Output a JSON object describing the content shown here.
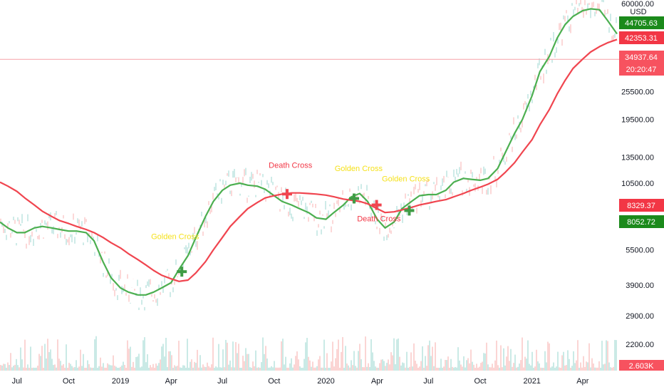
{
  "chart_data": {
    "type": "line",
    "yscale": "log",
    "ylim": [
      1900,
      62000
    ],
    "currency_label": "USD",
    "y_ticks": [
      "60000.00",
      "25500.00",
      "19500.00",
      "13500.00",
      "10500.00",
      "5500.00",
      "3900.00",
      "2900.00",
      "2200.00"
    ],
    "x_ticks": [
      "Jul",
      "Oct",
      "2019",
      "Apr",
      "Jul",
      "Oct",
      "2020",
      "Apr",
      "Jul",
      "Oct",
      "2021",
      "Apr"
    ],
    "price_badges": [
      {
        "value": "44705.63",
        "color": "#1b8a1b",
        "row": 0
      },
      {
        "value": "42353.31",
        "color": "#f23645",
        "row": 1
      },
      {
        "value": "34937.64",
        "color": "#f7525f",
        "row": 2
      },
      {
        "value": "20:20:47",
        "color": "#f7525f",
        "row": 3
      },
      {
        "value": "8329.37",
        "color": "#f23645",
        "row": 4
      },
      {
        "value": "8052.72",
        "color": "#1b8a1b",
        "row": 5
      }
    ],
    "volume_label": "2.603K",
    "current_price": 34937.64,
    "series": [
      {
        "color": "#4caf50",
        "points": [
          [
            "2018-06-01",
            7200
          ],
          [
            "2018-06-15",
            6800
          ],
          [
            "2018-07-01",
            6500
          ],
          [
            "2018-07-15",
            6500
          ],
          [
            "2018-08-01",
            6800
          ],
          [
            "2018-08-15",
            6900
          ],
          [
            "2018-09-01",
            6800
          ],
          [
            "2018-09-15",
            6700
          ],
          [
            "2018-10-01",
            6600
          ],
          [
            "2018-10-15",
            6600
          ],
          [
            "2018-11-01",
            6500
          ],
          [
            "2018-11-15",
            6000
          ],
          [
            "2018-12-01",
            4900
          ],
          [
            "2018-12-15",
            4200
          ],
          [
            "2019-01-01",
            3800
          ],
          [
            "2019-01-15",
            3650
          ],
          [
            "2019-02-01",
            3550
          ],
          [
            "2019-02-15",
            3550
          ],
          [
            "2019-03-01",
            3650
          ],
          [
            "2019-03-15",
            3800
          ],
          [
            "2019-04-01",
            4000
          ],
          [
            "2019-04-15",
            4550
          ],
          [
            "2019-05-01",
            5200
          ],
          [
            "2019-05-15",
            6200
          ],
          [
            "2019-06-01",
            7600
          ],
          [
            "2019-06-15",
            8800
          ],
          [
            "2019-07-01",
            9800
          ],
          [
            "2019-07-15",
            10300
          ],
          [
            "2019-08-01",
            10500
          ],
          [
            "2019-08-15",
            10300
          ],
          [
            "2019-09-01",
            10200
          ],
          [
            "2019-09-15",
            9900
          ],
          [
            "2019-10-01",
            9300
          ],
          [
            "2019-10-15",
            8800
          ],
          [
            "2019-11-01",
            8500
          ],
          [
            "2019-11-15",
            8200
          ],
          [
            "2019-12-01",
            7900
          ],
          [
            "2019-12-15",
            7500
          ],
          [
            "2020-01-01",
            7400
          ],
          [
            "2020-01-15",
            7900
          ],
          [
            "2020-02-01",
            8500
          ],
          [
            "2020-02-15",
            9200
          ],
          [
            "2020-03-01",
            9500
          ],
          [
            "2020-03-15",
            8800
          ],
          [
            "2020-04-01",
            7400
          ],
          [
            "2020-04-15",
            6800
          ],
          [
            "2020-05-01",
            7200
          ],
          [
            "2020-05-15",
            8200
          ],
          [
            "2020-06-01",
            8800
          ],
          [
            "2020-06-15",
            9300
          ],
          [
            "2020-07-01",
            9400
          ],
          [
            "2020-07-15",
            9400
          ],
          [
            "2020-08-01",
            9800
          ],
          [
            "2020-08-15",
            10600
          ],
          [
            "2020-09-01",
            11000
          ],
          [
            "2020-09-15",
            10900
          ],
          [
            "2020-10-01",
            10800
          ],
          [
            "2020-10-15",
            11000
          ],
          [
            "2020-11-01",
            12100
          ],
          [
            "2020-11-15",
            14200
          ],
          [
            "2020-12-01",
            17000
          ],
          [
            "2020-12-15",
            19500
          ],
          [
            "2021-01-01",
            24500
          ],
          [
            "2021-01-15",
            31000
          ],
          [
            "2021-02-01",
            36000
          ],
          [
            "2021-02-15",
            43000
          ],
          [
            "2021-03-01",
            49000
          ],
          [
            "2021-03-15",
            53000
          ],
          [
            "2021-04-01",
            56000
          ],
          [
            "2021-04-15",
            57000
          ],
          [
            "2021-05-01",
            56500
          ],
          [
            "2021-05-15",
            51000
          ],
          [
            "2021-06-01",
            44705.63
          ]
        ]
      },
      {
        "color": "#f0454f",
        "points": [
          [
            "2018-06-01",
            10600
          ],
          [
            "2018-06-15",
            10200
          ],
          [
            "2018-07-01",
            9700
          ],
          [
            "2018-07-15",
            9100
          ],
          [
            "2018-08-01",
            8500
          ],
          [
            "2018-08-15",
            8000
          ],
          [
            "2018-09-01",
            7600
          ],
          [
            "2018-09-15",
            7300
          ],
          [
            "2018-10-01",
            7100
          ],
          [
            "2018-10-15",
            6900
          ],
          [
            "2018-11-01",
            6700
          ],
          [
            "2018-11-15",
            6500
          ],
          [
            "2018-12-01",
            6200
          ],
          [
            "2018-12-15",
            5900
          ],
          [
            "2019-01-01",
            5600
          ],
          [
            "2019-01-15",
            5300
          ],
          [
            "2019-02-01",
            5000
          ],
          [
            "2019-02-15",
            4750
          ],
          [
            "2019-03-01",
            4500
          ],
          [
            "2019-03-15",
            4300
          ],
          [
            "2019-04-01",
            4150
          ],
          [
            "2019-04-15",
            4050
          ],
          [
            "2019-05-01",
            4100
          ],
          [
            "2019-05-15",
            4400
          ],
          [
            "2019-06-01",
            4900
          ],
          [
            "2019-06-15",
            5500
          ],
          [
            "2019-07-01",
            6200
          ],
          [
            "2019-07-15",
            6900
          ],
          [
            "2019-08-01",
            7600
          ],
          [
            "2019-08-15",
            8200
          ],
          [
            "2019-09-01",
            8700
          ],
          [
            "2019-09-15",
            9100
          ],
          [
            "2019-10-01",
            9300
          ],
          [
            "2019-10-15",
            9450
          ],
          [
            "2019-11-01",
            9550
          ],
          [
            "2019-11-15",
            9550
          ],
          [
            "2019-12-01",
            9500
          ],
          [
            "2019-12-15",
            9450
          ],
          [
            "2020-01-01",
            9350
          ],
          [
            "2020-01-15",
            9200
          ],
          [
            "2020-02-01",
            9000
          ],
          [
            "2020-02-15",
            8900
          ],
          [
            "2020-03-01",
            8800
          ],
          [
            "2020-03-15",
            8600
          ],
          [
            "2020-04-01",
            8200
          ],
          [
            "2020-04-15",
            7900
          ],
          [
            "2020-05-01",
            7950
          ],
          [
            "2020-05-15",
            8100
          ],
          [
            "2020-06-01",
            8300
          ],
          [
            "2020-06-15",
            8500
          ],
          [
            "2020-07-01",
            8650
          ],
          [
            "2020-07-15",
            8800
          ],
          [
            "2020-08-01",
            8950
          ],
          [
            "2020-08-15",
            9200
          ],
          [
            "2020-09-01",
            9500
          ],
          [
            "2020-09-15",
            9800
          ],
          [
            "2020-10-01",
            10100
          ],
          [
            "2020-10-15",
            10400
          ],
          [
            "2020-11-01",
            10900
          ],
          [
            "2020-11-15",
            11700
          ],
          [
            "2020-12-01",
            12800
          ],
          [
            "2020-12-15",
            14200
          ],
          [
            "2021-01-01",
            16000
          ],
          [
            "2021-01-15",
            18500
          ],
          [
            "2021-02-01",
            21500
          ],
          [
            "2021-02-15",
            25000
          ],
          [
            "2021-03-01",
            28500
          ],
          [
            "2021-03-15",
            32000
          ],
          [
            "2021-04-01",
            35000
          ],
          [
            "2021-04-15",
            37500
          ],
          [
            "2021-05-01",
            39500
          ],
          [
            "2021-05-15",
            41000
          ],
          [
            "2021-06-01",
            42353.31
          ]
        ]
      }
    ],
    "annotations": [
      {
        "text": "Golden Cross",
        "date": "2019-04-20",
        "price": 4450,
        "label_date": "2019-04-08",
        "label_price": 6100,
        "color": "#f5e11b",
        "marker_color": "#3f9c45",
        "kind": "golden"
      },
      {
        "text": "Death Cross",
        "date": "2019-10-24",
        "price": 9450,
        "label_date": "2019-10-30",
        "label_price": 12200,
        "color": "#f23645",
        "marker_color": "#f0454f",
        "kind": "death"
      },
      {
        "text": "Golden Cross",
        "date": "2020-02-20",
        "price": 9050,
        "label_date": "2020-02-28",
        "label_price": 11800,
        "color": "#f5e11b",
        "marker_color": "#3f9c45",
        "kind": "golden"
      },
      {
        "text": "Death Cross",
        "date": "2020-03-31",
        "price": 8500,
        "label_date": "2020-04-04",
        "label_price": 7250,
        "color": "#f23645",
        "marker_color": "#f0454f",
        "kind": "death"
      },
      {
        "text": "Golden Cross",
        "date": "2020-05-28",
        "price": 8050,
        "label_date": "2020-05-22",
        "label_price": 10700,
        "color": "#f5e11b",
        "marker_color": "#3f9c45",
        "kind": "golden"
      }
    ],
    "grid": false,
    "legend": "none"
  }
}
